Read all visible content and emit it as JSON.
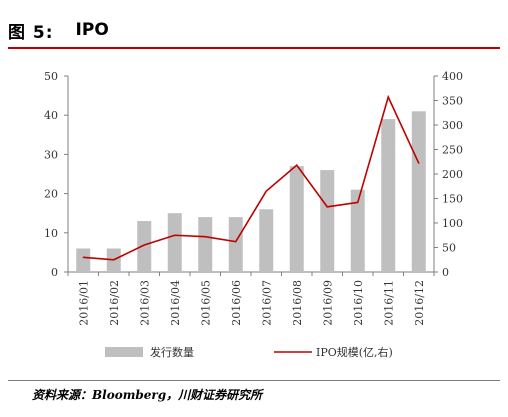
{
  "figure": {
    "number_label": "图  5:",
    "title": "IPO"
  },
  "source_note": "资料来源：Bloomberg，川财证券研究所",
  "colors": {
    "bar": "#bfbfbf",
    "line": "#c00000",
    "rule_top": "#c00000",
    "axis": "#7f7f7f"
  },
  "chart_data": {
    "type": "bar",
    "categories": [
      "2016/01",
      "2016/02",
      "2016/03",
      "2016/04",
      "2016/05",
      "2016/06",
      "2016/07",
      "2016/08",
      "2016/09",
      "2016/10",
      "2016/11",
      "2016/12"
    ],
    "series": [
      {
        "name": "发行数量",
        "type": "bar",
        "axis": "left",
        "values": [
          6,
          6,
          13,
          15,
          14,
          14,
          16,
          27,
          26,
          21,
          39,
          41
        ]
      },
      {
        "name": "IPO规模(亿,右)",
        "type": "line",
        "axis": "right",
        "values": [
          30,
          25,
          55,
          75,
          72,
          62,
          165,
          218,
          133,
          142,
          357,
          222
        ]
      }
    ],
    "left_axis": {
      "ylim": [
        0,
        50
      ],
      "ticks": [
        "0",
        "10",
        "20",
        "30",
        "40",
        "50"
      ]
    },
    "right_axis": {
      "ylim": [
        0,
        400
      ],
      "ticks": [
        "0",
        "50",
        "100",
        "150",
        "200",
        "250",
        "300",
        "350",
        "400"
      ]
    },
    "legend_position": "bottom",
    "grid": false
  }
}
